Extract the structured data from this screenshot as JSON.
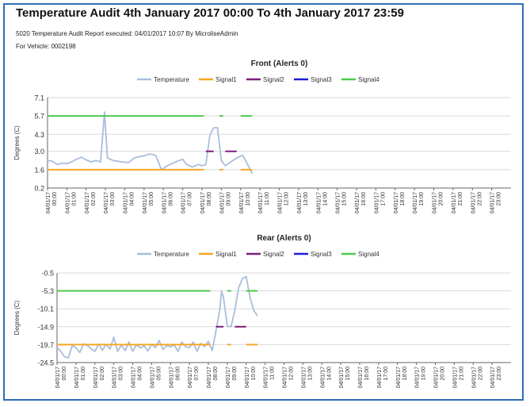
{
  "report": {
    "title": "Temperature Audit 4th January 2017 00:00 To 4th January 2017 23:59",
    "executed_line": "5020 Temperature Audit Report executed: 04/01/2017 10:07 By MicroliseAdmin",
    "vehicle_line": "For  Vehicle: 0002198"
  },
  "colors": {
    "frame": "#2f6db5",
    "Temperature": "#a9bedb",
    "Signal1": "#f5a623",
    "Signal2": "#7b1e7a",
    "Signal3": "#1f1fd1",
    "Signal4": "#4cc94c"
  },
  "chart_data": [
    {
      "type": "line",
      "title": "Front (Alerts 0)",
      "ylabel": "Degrees (C)",
      "xlabel": "",
      "ylim": [
        0.2,
        7.1
      ],
      "yticks": [
        "7.1",
        "5.7",
        "4.3",
        "3.0",
        "1.6",
        "0.2"
      ],
      "x_tick_date": "04/01/17",
      "x_ticks": [
        "00:00",
        "01:00",
        "02:00",
        "03:00",
        "04:00",
        "05:00",
        "06:00",
        "07:00",
        "08:00",
        "09:00",
        "10:00",
        "11:00",
        "12:00",
        "13:00",
        "14:00",
        "15:00",
        "16:00",
        "17:00",
        "18:00",
        "19:00",
        "20:00",
        "21:00",
        "22:00",
        "23:00"
      ],
      "legend": [
        "Temperature",
        "Signal1",
        "Signal2",
        "Signal3",
        "Signal4"
      ],
      "legend_position": "top",
      "grid": "horizontal",
      "series": [
        {
          "name": "Temperature",
          "style": "line",
          "points": [
            [
              0,
              2.3
            ],
            [
              0.25,
              2.25
            ],
            [
              0.5,
              2.0
            ],
            [
              0.75,
              2.1
            ],
            [
              1.0,
              2.05
            ],
            [
              1.25,
              2.2
            ],
            [
              1.5,
              2.4
            ],
            [
              1.75,
              2.55
            ],
            [
              2.0,
              2.35
            ],
            [
              2.25,
              2.2
            ],
            [
              2.5,
              2.3
            ],
            [
              2.75,
              2.2
            ],
            [
              2.95,
              6.0
            ],
            [
              3.1,
              2.5
            ],
            [
              3.4,
              2.3
            ],
            [
              3.8,
              2.2
            ],
            [
              4.2,
              2.15
            ],
            [
              4.5,
              2.5
            ],
            [
              4.8,
              2.6
            ],
            [
              5.1,
              2.7
            ],
            [
              5.3,
              2.8
            ],
            [
              5.6,
              2.7
            ],
            [
              5.9,
              1.6
            ],
            [
              6.2,
              1.9
            ],
            [
              6.5,
              2.1
            ],
            [
              6.8,
              2.3
            ],
            [
              7.0,
              2.4
            ],
            [
              7.2,
              2.0
            ],
            [
              7.5,
              1.8
            ],
            [
              7.8,
              2.0
            ],
            [
              8.0,
              1.9
            ],
            [
              8.2,
              2.0
            ],
            [
              8.4,
              4.2
            ],
            [
              8.6,
              4.8
            ],
            [
              8.8,
              4.8
            ],
            [
              9.0,
              2.3
            ],
            [
              9.2,
              1.9
            ],
            [
              9.5,
              2.2
            ],
            [
              9.8,
              2.5
            ],
            [
              10.1,
              2.7
            ],
            [
              10.4,
              1.9
            ],
            [
              10.6,
              1.3
            ]
          ]
        },
        {
          "name": "Signal1",
          "style": "segments",
          "y": 1.6,
          "segments": [
            [
              0,
              8.1
            ],
            [
              8.9,
              9.1
            ],
            [
              10.0,
              10.6
            ]
          ]
        },
        {
          "name": "Signal2",
          "style": "segments",
          "y": 3.0,
          "segments": [
            [
              8.2,
              8.6
            ],
            [
              9.2,
              9.8
            ]
          ]
        },
        {
          "name": "Signal3",
          "style": "segments",
          "y": 0,
          "segments": []
        },
        {
          "name": "Signal4",
          "style": "segments",
          "y": 5.7,
          "segments": [
            [
              0,
              8.1
            ],
            [
              8.9,
              9.1
            ],
            [
              10.0,
              10.6
            ]
          ]
        }
      ]
    },
    {
      "type": "line",
      "title": "Rear (Alerts 0)",
      "ylabel": "Degrees (C)",
      "xlabel": "",
      "ylim": [
        -24.5,
        -0.5
      ],
      "yticks": [
        "-0.5",
        "-5.3",
        "-10.1",
        "-14.9",
        "-19.7",
        "-24.5"
      ],
      "x_tick_date": "04/01/17",
      "x_ticks": [
        "00:00",
        "01:00",
        "02:00",
        "03:00",
        "04:00",
        "05:00",
        "06:00",
        "07:00",
        "08:00",
        "09:00",
        "10:00",
        "11:00",
        "12:00",
        "13:00",
        "14:00",
        "15:00",
        "16:00",
        "17:00",
        "18:00",
        "19:00",
        "20:00",
        "21:00",
        "22:00",
        "23:00"
      ],
      "legend": [
        "Temperature",
        "Signal1",
        "Signal2",
        "Signal3",
        "Signal4"
      ],
      "legend_position": "top",
      "grid": "horizontal",
      "series": [
        {
          "name": "Temperature",
          "style": "line",
          "points": [
            [
              0,
              -20.5
            ],
            [
              0.2,
              -21.5
            ],
            [
              0.4,
              -23.0
            ],
            [
              0.6,
              -23.2
            ],
            [
              0.8,
              -20.0
            ],
            [
              1.0,
              -20.5
            ],
            [
              1.2,
              -21.8
            ],
            [
              1.4,
              -19.5
            ],
            [
              1.6,
              -19.9
            ],
            [
              1.8,
              -20.8
            ],
            [
              2.0,
              -21.5
            ],
            [
              2.2,
              -19.5
            ],
            [
              2.4,
              -21.2
            ],
            [
              2.6,
              -19.6
            ],
            [
              2.8,
              -20.9
            ],
            [
              3.0,
              -17.7
            ],
            [
              3.2,
              -21.5
            ],
            [
              3.4,
              -19.8
            ],
            [
              3.6,
              -21.3
            ],
            [
              3.8,
              -19.0
            ],
            [
              4.0,
              -21.5
            ],
            [
              4.2,
              -19.7
            ],
            [
              4.4,
              -20.6
            ],
            [
              4.6,
              -20.0
            ],
            [
              4.8,
              -21.4
            ],
            [
              5.0,
              -19.6
            ],
            [
              5.2,
              -20.5
            ],
            [
              5.4,
              -18.6
            ],
            [
              5.6,
              -21.0
            ],
            [
              5.8,
              -20.0
            ],
            [
              6.0,
              -20.3
            ],
            [
              6.2,
              -19.8
            ],
            [
              6.4,
              -21.5
            ],
            [
              6.6,
              -19.0
            ],
            [
              6.8,
              -20.3
            ],
            [
              7.0,
              -20.5
            ],
            [
              7.2,
              -19.0
            ],
            [
              7.4,
              -21.5
            ],
            [
              7.6,
              -19.4
            ],
            [
              7.8,
              -20.2
            ],
            [
              8.0,
              -18.8
            ],
            [
              8.2,
              -21.3
            ],
            [
              8.4,
              -16.0
            ],
            [
              8.6,
              -10.5
            ],
            [
              8.7,
              -5.4
            ],
            [
              8.8,
              -7.0
            ],
            [
              9.0,
              -14.8
            ],
            [
              9.2,
              -14.9
            ],
            [
              9.4,
              -10.5
            ],
            [
              9.6,
              -4.5
            ],
            [
              9.8,
              -2.0
            ],
            [
              10.0,
              -1.5
            ],
            [
              10.2,
              -7.0
            ],
            [
              10.4,
              -10.5
            ],
            [
              10.6,
              -12.0
            ]
          ]
        },
        {
          "name": "Signal1",
          "style": "segments",
          "y": -19.7,
          "segments": [
            [
              0,
              8.1
            ],
            [
              9.0,
              9.2
            ],
            [
              10.0,
              10.6
            ]
          ]
        },
        {
          "name": "Signal2",
          "style": "segments",
          "y": -14.9,
          "segments": [
            [
              8.4,
              8.8
            ],
            [
              9.4,
              10.0
            ]
          ]
        },
        {
          "name": "Signal3",
          "style": "segments",
          "y": 0,
          "segments": []
        },
        {
          "name": "Signal4",
          "style": "segments",
          "y": -5.3,
          "segments": [
            [
              0,
              8.1
            ],
            [
              9.0,
              9.2
            ],
            [
              10.0,
              10.6
            ]
          ]
        }
      ]
    }
  ]
}
